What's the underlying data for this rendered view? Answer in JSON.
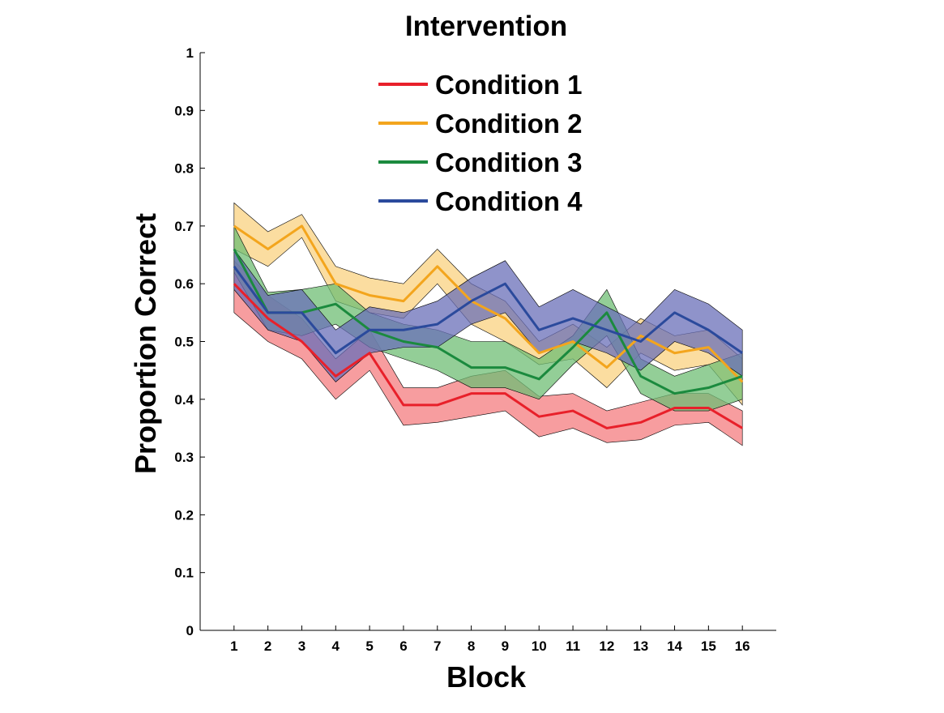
{
  "chart_data": {
    "type": "line",
    "title": "Intervention",
    "xlabel": "Block",
    "ylabel": "Proportion Correct",
    "xlim": [
      0,
      17
    ],
    "ylim": [
      0,
      1
    ],
    "xticks": [
      1,
      2,
      3,
      4,
      5,
      6,
      7,
      8,
      9,
      10,
      11,
      12,
      13,
      14,
      15,
      16
    ],
    "yticks": [
      0,
      0.1,
      0.2,
      0.3,
      0.4,
      0.5,
      0.6,
      0.7,
      0.8,
      0.9,
      1
    ],
    "ytick_labels": [
      "0",
      "0.1",
      "0.2",
      "0.3",
      "0.4",
      "0.5",
      "0.6",
      "0.7",
      "0.8",
      "0.9",
      "1"
    ],
    "legend_position": "top-center",
    "grid": false,
    "shaded_bands": true,
    "x": [
      1,
      2,
      3,
      4,
      5,
      6,
      7,
      8,
      9,
      10,
      11,
      12,
      13,
      14,
      15,
      16
    ],
    "series": [
      {
        "name": "Condition 1",
        "color": "#e8202a",
        "band_color": "#f47c7f",
        "values": [
          0.6,
          0.54,
          0.5,
          0.44,
          0.48,
          0.39,
          0.39,
          0.41,
          0.41,
          0.37,
          0.38,
          0.35,
          0.36,
          0.385,
          0.385,
          0.35
        ],
        "lower": [
          0.55,
          0.5,
          0.47,
          0.4,
          0.45,
          0.355,
          0.36,
          0.37,
          0.38,
          0.335,
          0.35,
          0.325,
          0.33,
          0.355,
          0.36,
          0.32
        ],
        "upper": [
          0.64,
          0.58,
          0.54,
          0.47,
          0.52,
          0.42,
          0.42,
          0.44,
          0.45,
          0.405,
          0.41,
          0.38,
          0.395,
          0.41,
          0.41,
          0.38
        ]
      },
      {
        "name": "Condition 2",
        "color": "#f3a51d",
        "band_color": "#f9d180",
        "values": [
          0.7,
          0.66,
          0.7,
          0.6,
          0.58,
          0.57,
          0.63,
          0.57,
          0.54,
          0.48,
          0.5,
          0.455,
          0.51,
          0.48,
          0.49,
          0.43
        ],
        "lower": [
          0.66,
          0.63,
          0.68,
          0.57,
          0.55,
          0.54,
          0.6,
          0.53,
          0.5,
          0.46,
          0.47,
          0.42,
          0.48,
          0.45,
          0.46,
          0.39
        ],
        "upper": [
          0.74,
          0.69,
          0.72,
          0.63,
          0.61,
          0.6,
          0.66,
          0.6,
          0.57,
          0.5,
          0.53,
          0.49,
          0.54,
          0.51,
          0.52,
          0.47
        ]
      },
      {
        "name": "Condition 3",
        "color": "#1b8a3e",
        "band_color": "#6fbe74",
        "values": [
          0.66,
          0.55,
          0.55,
          0.565,
          0.52,
          0.5,
          0.49,
          0.455,
          0.455,
          0.435,
          0.49,
          0.55,
          0.44,
          0.41,
          0.42,
          0.44
        ],
        "lower": [
          0.62,
          0.52,
          0.51,
          0.53,
          0.49,
          0.47,
          0.45,
          0.42,
          0.42,
          0.4,
          0.46,
          0.51,
          0.41,
          0.38,
          0.38,
          0.4
        ],
        "upper": [
          0.7,
          0.585,
          0.59,
          0.6,
          0.55,
          0.53,
          0.52,
          0.5,
          0.5,
          0.47,
          0.51,
          0.59,
          0.47,
          0.44,
          0.46,
          0.48
        ]
      },
      {
        "name": "Condition 4",
        "color": "#2b4a9c",
        "band_color": "#6a6fb8",
        "values": [
          0.63,
          0.55,
          0.55,
          0.48,
          0.52,
          0.52,
          0.53,
          0.57,
          0.6,
          0.52,
          0.54,
          0.52,
          0.5,
          0.55,
          0.52,
          0.48
        ],
        "lower": [
          0.59,
          0.52,
          0.5,
          0.43,
          0.48,
          0.49,
          0.49,
          0.53,
          0.55,
          0.48,
          0.5,
          0.48,
          0.45,
          0.5,
          0.48,
          0.44
        ],
        "upper": [
          0.66,
          0.58,
          0.59,
          0.52,
          0.56,
          0.55,
          0.57,
          0.61,
          0.64,
          0.56,
          0.59,
          0.56,
          0.53,
          0.59,
          0.565,
          0.52
        ]
      }
    ]
  }
}
